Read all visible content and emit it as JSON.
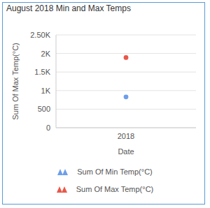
{
  "chart_data": {
    "type": "scatter",
    "title": "August 2018 Min and Max Temps",
    "x_label": "Date",
    "y_label": "Sum Of Max Temp(°C)",
    "categories": [
      "2018"
    ],
    "series": [
      {
        "name": "Sum Of Min Temp(°C)",
        "color": "#6d9eeb",
        "marker": "circle",
        "values": [
          830
        ]
      },
      {
        "name": "Sum Of Max Temp(°C)",
        "color": "#e8584a",
        "marker": "circle",
        "values": [
          1890
        ]
      }
    ],
    "ylim": [
      0,
      2500
    ],
    "yticks": [
      0,
      500,
      {
        "value": 1000,
        "label": "1K"
      },
      {
        "value": 1500,
        "label": "1.5K"
      },
      {
        "value": 2000,
        "label": "2K"
      },
      {
        "value": 2500,
        "label": "2.50K"
      }
    ],
    "grid": true
  }
}
